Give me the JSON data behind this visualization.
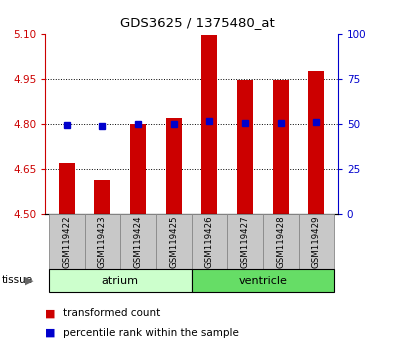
{
  "title": "GDS3625 / 1375480_at",
  "categories": [
    "GSM119422",
    "GSM119423",
    "GSM119424",
    "GSM119425",
    "GSM119426",
    "GSM119427",
    "GSM119428",
    "GSM119429"
  ],
  "transformed_counts": [
    4.67,
    4.615,
    4.8,
    4.82,
    5.095,
    4.945,
    4.945,
    4.975
  ],
  "percentile_values": [
    4.795,
    4.793,
    4.8,
    4.8,
    4.808,
    4.803,
    4.803,
    4.805
  ],
  "ylim_left": [
    4.5,
    5.1
  ],
  "ylim_right": [
    0,
    100
  ],
  "yticks_left": [
    4.5,
    4.65,
    4.8,
    4.95,
    5.1
  ],
  "yticks_right": [
    0,
    25,
    50,
    75,
    100
  ],
  "grid_lines_at": [
    4.65,
    4.8,
    4.95
  ],
  "tissue_groups": [
    {
      "label": "atrium",
      "indices": [
        0,
        1,
        2,
        3
      ],
      "color": "#ccffcc"
    },
    {
      "label": "ventricle",
      "indices": [
        4,
        5,
        6,
        7
      ],
      "color": "#66dd66"
    }
  ],
  "bar_color": "#cc0000",
  "dot_color": "#0000cc",
  "tick_color_left": "#cc0000",
  "tick_color_right": "#0000cc",
  "label_box_color": "#c8c8c8",
  "bar_width": 0.45
}
